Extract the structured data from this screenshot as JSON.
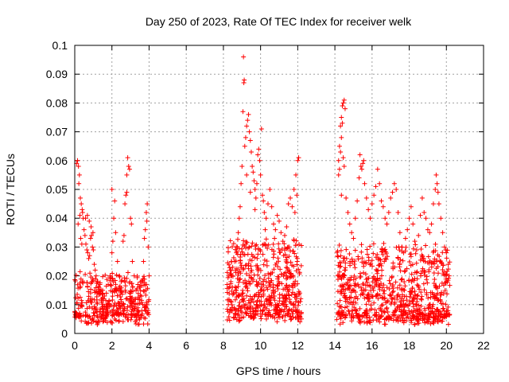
{
  "chart_data": {
    "type": "scatter",
    "title": "Day 250 of 2023, Rate Of TEC Index for receiver welk",
    "xlabel": "GPS time / hours",
    "ylabel": "ROTI / TECUs",
    "xlim": [
      0,
      22
    ],
    "ylim": [
      0,
      0.1
    ],
    "xticks": [
      0,
      2,
      4,
      6,
      8,
      10,
      12,
      14,
      16,
      18,
      20,
      22
    ],
    "xtick_labels": [
      "0",
      "2",
      "4",
      "6",
      "8",
      "10",
      "12",
      "14",
      "16",
      "18",
      "20",
      "22"
    ],
    "yticks": [
      0,
      0.01,
      0.02,
      0.03,
      0.04,
      0.05,
      0.06,
      0.07,
      0.08,
      0.09,
      0.1
    ],
    "ytick_labels": [
      "0",
      "0.01",
      "0.02",
      "0.03",
      "0.04",
      "0.05",
      "0.06",
      "0.07",
      "0.08",
      "0.09",
      "0.1"
    ],
    "grid": true,
    "marker": "+",
    "color": "#ff0000",
    "series": [
      {
        "points": [
          [
            0.1,
            0.059
          ],
          [
            0.15,
            0.06
          ],
          [
            0.2,
            0.058
          ],
          [
            0.25,
            0.055
          ],
          [
            0.22,
            0.052
          ],
          [
            0.3,
            0.047
          ],
          [
            0.35,
            0.045
          ],
          [
            0.4,
            0.043
          ],
          [
            0.28,
            0.041
          ],
          [
            0.45,
            0.04
          ],
          [
            0.5,
            0.036
          ],
          [
            0.55,
            0.034
          ],
          [
            0.6,
            0.031
          ],
          [
            0.65,
            0.029
          ],
          [
            0.7,
            0.028
          ],
          [
            0.75,
            0.026
          ],
          [
            0.8,
            0.027
          ],
          [
            0.85,
            0.033
          ],
          [
            0.9,
            0.034
          ],
          [
            0.95,
            0.03
          ],
          [
            1.0,
            0.029
          ],
          [
            1.05,
            0.024
          ],
          [
            1.1,
            0.022
          ],
          [
            0.18,
            0.038
          ],
          [
            0.32,
            0.033
          ],
          [
            0.38,
            0.031
          ],
          [
            0.42,
            0.042
          ],
          [
            0.58,
            0.04
          ],
          [
            0.68,
            0.041
          ],
          [
            0.78,
            0.039
          ],
          [
            0.88,
            0.037
          ],
          [
            0.98,
            0.035
          ],
          [
            1.15,
            0.02
          ],
          [
            1.2,
            0.018
          ],
          [
            1.3,
            0.016
          ],
          [
            1.4,
            0.014
          ],
          [
            1.5,
            0.015
          ],
          [
            1.6,
            0.013
          ],
          [
            1.7,
            0.014
          ],
          [
            1.8,
            0.017
          ],
          [
            1.9,
            0.02
          ],
          [
            2.0,
            0.028
          ],
          [
            2.05,
            0.032
          ],
          [
            2.1,
            0.04
          ],
          [
            2.15,
            0.046
          ],
          [
            2.0,
            0.05
          ],
          [
            2.2,
            0.035
          ],
          [
            2.3,
            0.025
          ],
          [
            2.4,
            0.02
          ],
          [
            2.5,
            0.018
          ],
          [
            2.6,
            0.032
          ],
          [
            2.65,
            0.034
          ],
          [
            2.7,
            0.045
          ],
          [
            2.75,
            0.048
          ],
          [
            2.8,
            0.055
          ],
          [
            2.85,
            0.061
          ],
          [
            2.9,
            0.058
          ],
          [
            2.95,
            0.057
          ],
          [
            2.8,
            0.049
          ],
          [
            3.0,
            0.04
          ],
          [
            3.05,
            0.038
          ],
          [
            3.1,
            0.025
          ],
          [
            3.2,
            0.02
          ],
          [
            3.3,
            0.015
          ],
          [
            3.4,
            0.017
          ],
          [
            3.5,
            0.016
          ],
          [
            3.6,
            0.018
          ],
          [
            3.7,
            0.025
          ],
          [
            3.75,
            0.033
          ],
          [
            3.8,
            0.036
          ],
          [
            3.85,
            0.042
          ],
          [
            3.9,
            0.045
          ],
          [
            3.95,
            0.03
          ],
          [
            4.0,
            0.02
          ],
          [
            3.88,
            0.039
          ],
          [
            8.2,
            0.017
          ],
          [
            8.3,
            0.02
          ],
          [
            8.4,
            0.018
          ],
          [
            8.5,
            0.023
          ],
          [
            8.6,
            0.025
          ],
          [
            8.7,
            0.028
          ],
          [
            8.75,
            0.03
          ],
          [
            8.8,
            0.035
          ],
          [
            8.85,
            0.04
          ],
          [
            8.9,
            0.044
          ],
          [
            8.95,
            0.052
          ],
          [
            9.0,
            0.058
          ],
          [
            9.05,
            0.077
          ],
          [
            9.1,
            0.087
          ],
          [
            9.12,
            0.088
          ],
          [
            9.08,
            0.096
          ],
          [
            9.15,
            0.065
          ],
          [
            9.2,
            0.068
          ],
          [
            9.25,
            0.072
          ],
          [
            9.3,
            0.074
          ],
          [
            9.35,
            0.076
          ],
          [
            9.4,
            0.07
          ],
          [
            9.45,
            0.067
          ],
          [
            9.5,
            0.063
          ],
          [
            9.55,
            0.058
          ],
          [
            9.6,
            0.056
          ],
          [
            9.65,
            0.053
          ],
          [
            9.7,
            0.05
          ],
          [
            9.75,
            0.047
          ],
          [
            9.8,
            0.052
          ],
          [
            9.85,
            0.062
          ],
          [
            9.9,
            0.064
          ],
          [
            9.95,
            0.06
          ],
          [
            10.0,
            0.055
          ],
          [
            10.05,
            0.071
          ],
          [
            10.1,
            0.048
          ],
          [
            10.15,
            0.046
          ],
          [
            10.2,
            0.042
          ],
          [
            10.3,
            0.04
          ],
          [
            10.4,
            0.045
          ],
          [
            10.5,
            0.05
          ],
          [
            10.6,
            0.044
          ],
          [
            10.7,
            0.038
          ],
          [
            10.8,
            0.036
          ],
          [
            10.9,
            0.041
          ],
          [
            11.0,
            0.039
          ],
          [
            11.1,
            0.035
          ],
          [
            11.2,
            0.032
          ],
          [
            11.3,
            0.034
          ],
          [
            11.4,
            0.037
          ],
          [
            11.5,
            0.045
          ],
          [
            11.6,
            0.047
          ],
          [
            11.7,
            0.044
          ],
          [
            11.8,
            0.05
          ],
          [
            11.9,
            0.055
          ],
          [
            12.0,
            0.06
          ],
          [
            12.05,
            0.061
          ],
          [
            9.25,
            0.055
          ],
          [
            9.45,
            0.049
          ],
          [
            9.7,
            0.043
          ],
          [
            10.25,
            0.036
          ],
          [
            10.75,
            0.033
          ],
          [
            11.15,
            0.029
          ],
          [
            11.55,
            0.03
          ],
          [
            11.85,
            0.042
          ],
          [
            11.95,
            0.048
          ],
          [
            14.2,
            0.06
          ],
          [
            14.25,
            0.065
          ],
          [
            14.3,
            0.072
          ],
          [
            14.35,
            0.075
          ],
          [
            14.4,
            0.079
          ],
          [
            14.45,
            0.08
          ],
          [
            14.5,
            0.081
          ],
          [
            14.55,
            0.078
          ],
          [
            14.4,
            0.073
          ],
          [
            14.35,
            0.068
          ],
          [
            14.3,
            0.063
          ],
          [
            14.25,
            0.057
          ],
          [
            14.2,
            0.055
          ],
          [
            14.45,
            0.061
          ],
          [
            14.5,
            0.058
          ],
          [
            14.35,
            0.048
          ],
          [
            14.6,
            0.047
          ],
          [
            14.7,
            0.042
          ],
          [
            14.8,
            0.038
          ],
          [
            14.9,
            0.035
          ],
          [
            15.0,
            0.033
          ],
          [
            15.1,
            0.04
          ],
          [
            15.2,
            0.046
          ],
          [
            15.3,
            0.054
          ],
          [
            15.35,
            0.062
          ],
          [
            15.4,
            0.058
          ],
          [
            15.45,
            0.057
          ],
          [
            15.5,
            0.059
          ],
          [
            15.55,
            0.06
          ],
          [
            15.6,
            0.052
          ],
          [
            15.7,
            0.047
          ],
          [
            15.8,
            0.043
          ],
          [
            15.9,
            0.04
          ],
          [
            16.0,
            0.045
          ],
          [
            16.1,
            0.048
          ],
          [
            16.2,
            0.051
          ],
          [
            16.3,
            0.057
          ],
          [
            16.4,
            0.052
          ],
          [
            16.5,
            0.046
          ],
          [
            16.6,
            0.044
          ],
          [
            16.7,
            0.04
          ],
          [
            16.8,
            0.038
          ],
          [
            16.9,
            0.042
          ],
          [
            17.0,
            0.047
          ],
          [
            17.1,
            0.049
          ],
          [
            17.2,
            0.052
          ],
          [
            17.3,
            0.05
          ],
          [
            17.4,
            0.042
          ],
          [
            17.5,
            0.035
          ],
          [
            17.6,
            0.03
          ],
          [
            17.7,
            0.028
          ],
          [
            17.8,
            0.033
          ],
          [
            17.9,
            0.036
          ],
          [
            18.0,
            0.04
          ],
          [
            18.1,
            0.044
          ],
          [
            18.2,
            0.038
          ],
          [
            18.3,
            0.032
          ],
          [
            18.4,
            0.029
          ],
          [
            18.5,
            0.034
          ],
          [
            18.6,
            0.041
          ],
          [
            18.7,
            0.047
          ],
          [
            18.8,
            0.042
          ],
          [
            18.9,
            0.04
          ],
          [
            19.0,
            0.036
          ],
          [
            19.1,
            0.035
          ],
          [
            19.2,
            0.038
          ],
          [
            19.3,
            0.045
          ],
          [
            19.4,
            0.05
          ],
          [
            19.45,
            0.055
          ],
          [
            19.5,
            0.052
          ],
          [
            19.55,
            0.049
          ],
          [
            19.6,
            0.045
          ],
          [
            19.7,
            0.04
          ],
          [
            19.8,
            0.035
          ],
          [
            19.9,
            0.03
          ],
          [
            20.0,
            0.028
          ],
          [
            20.1,
            0.024
          ],
          [
            20.15,
            0.02
          ]
        ],
        "density_bands": [
          {
            "x": [
              0.0,
              4.0
            ],
            "y": [
              0.003,
              0.018
            ],
            "n": 420
          },
          {
            "x": [
              8.2,
              12.2
            ],
            "y": [
              0.004,
              0.03
            ],
            "n": 560
          },
          {
            "x": [
              14.1,
              20.2
            ],
            "y": [
              0.003,
              0.028
            ],
            "n": 780
          }
        ]
      }
    ]
  }
}
